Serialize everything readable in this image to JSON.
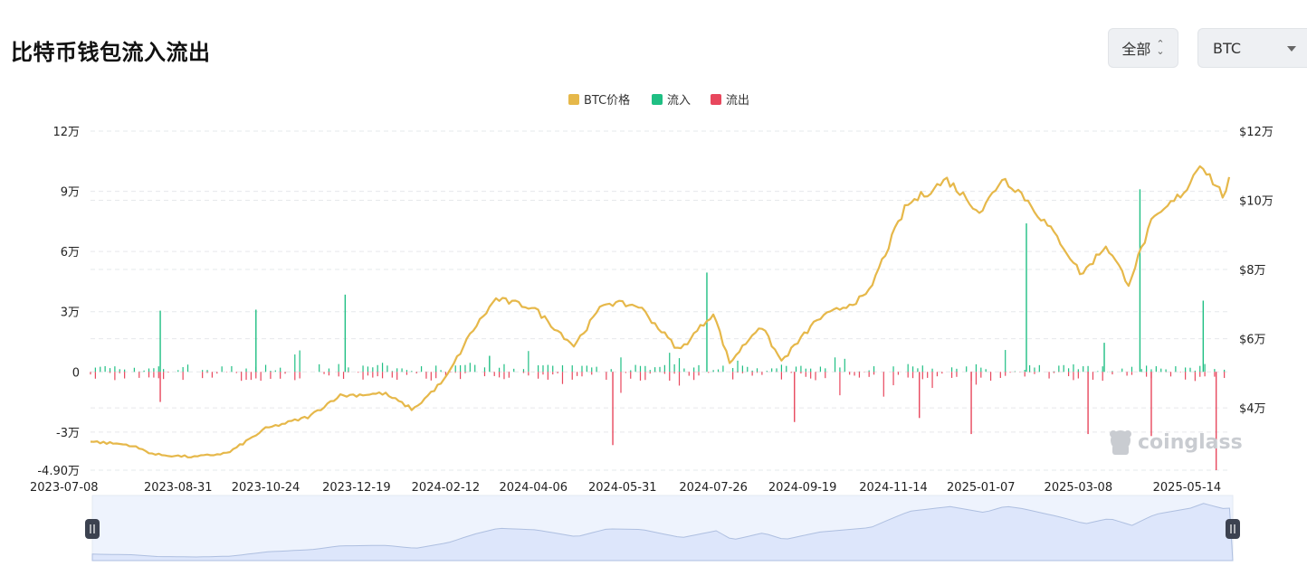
{
  "header": {
    "title": "比特币钱包流入流出",
    "range_label": "全部",
    "coin_label": "BTC"
  },
  "watermark": "coinglass",
  "colors": {
    "price": "#e6b84a",
    "inflow": "#1fbf83",
    "outflow": "#e8475d",
    "grid": "#e6e8eb",
    "slider": "#dde6fb"
  },
  "chart_data": {
    "type": "bar+line",
    "legend": [
      "BTC价格",
      "流入",
      "流出"
    ],
    "legend_position": "top-center",
    "grid": true,
    "x_tick_labels": [
      "2023-07-08",
      "2023-08-31",
      "2023-10-24",
      "2023-12-19",
      "2024-02-12",
      "2024-04-06",
      "2024-05-31",
      "2024-07-26",
      "2024-09-19",
      "2024-11-14",
      "2025-01-07",
      "2025-03-08",
      "2025-05-14"
    ],
    "x_range": [
      "2023-07-08",
      "2025-06-09"
    ],
    "y_left": {
      "range": [
        -49000,
        120000
      ],
      "tick_values": [
        120000,
        90000,
        60000,
        30000,
        0,
        -30000,
        -49000
      ],
      "tick_labels": [
        "12万",
        "9万",
        "6万",
        "3万",
        "0",
        "-3万",
        "-4.90万"
      ]
    },
    "y_right": {
      "range": [
        22000,
        120000
      ],
      "tick_values": [
        120000,
        100000,
        80000,
        60000,
        40000
      ],
      "tick_labels": [
        "$12万",
        "$10万",
        "$8万",
        "$6万",
        "$4万"
      ]
    },
    "price_series": {
      "name": "BTC价格",
      "points": [
        [
          "2023-07-08",
          30300
        ],
        [
          "2023-08-01",
          29300
        ],
        [
          "2023-08-17",
          26500
        ],
        [
          "2023-09-10",
          25800
        ],
        [
          "2023-10-01",
          27000
        ],
        [
          "2023-10-24",
          34000
        ],
        [
          "2023-11-20",
          37500
        ],
        [
          "2023-12-08",
          43500
        ],
        [
          "2024-01-05",
          44200
        ],
        [
          "2024-01-23",
          39500
        ],
        [
          "2024-02-12",
          48500
        ],
        [
          "2024-02-28",
          62000
        ],
        [
          "2024-03-14",
          71500
        ],
        [
          "2024-04-06",
          69000
        ],
        [
          "2024-05-01",
          58000
        ],
        [
          "2024-05-20",
          70500
        ],
        [
          "2024-06-10",
          69500
        ],
        [
          "2024-07-05",
          56500
        ],
        [
          "2024-07-26",
          67500
        ],
        [
          "2024-08-05",
          53000
        ],
        [
          "2024-08-24",
          64000
        ],
        [
          "2024-09-06",
          53500
        ],
        [
          "2024-09-28",
          65500
        ],
        [
          "2024-10-29",
          72500
        ],
        [
          "2024-11-13",
          89000
        ],
        [
          "2024-11-22",
          98500
        ],
        [
          "2024-12-17",
          106000
        ],
        [
          "2025-01-07",
          96500
        ],
        [
          "2025-01-20",
          106500
        ],
        [
          "2025-01-31",
          102500
        ],
        [
          "2025-02-25",
          88000
        ],
        [
          "2025-03-10",
          78500
        ],
        [
          "2025-03-25",
          87000
        ],
        [
          "2025-04-08",
          76000
        ],
        [
          "2025-04-22",
          93500
        ],
        [
          "2025-05-14",
          103500
        ],
        [
          "2025-05-22",
          111000
        ],
        [
          "2025-06-05",
          101500
        ],
        [
          "2025-06-09",
          105500
        ]
      ]
    },
    "flow_spikes": {
      "inflow": [
        [
          "2023-08-20",
          30500
        ],
        [
          "2023-10-18",
          31000
        ],
        [
          "2023-12-12",
          38500
        ],
        [
          "2024-03-10",
          8000
        ],
        [
          "2024-07-22",
          49500
        ],
        [
          "2025-02-04",
          74000
        ],
        [
          "2025-03-24",
          14500
        ],
        [
          "2025-04-15",
          91000
        ],
        [
          "2025-05-24",
          35500
        ]
      ],
      "outflow": [
        [
          "2023-08-20",
          -15000
        ],
        [
          "2024-05-25",
          -36500
        ],
        [
          "2024-09-14",
          -25000
        ],
        [
          "2024-11-30",
          -23000
        ],
        [
          "2025-01-01",
          -31000
        ],
        [
          "2025-03-14",
          -31000
        ],
        [
          "2025-04-22",
          -32000
        ],
        [
          "2025-06-01",
          -49000
        ]
      ]
    }
  }
}
